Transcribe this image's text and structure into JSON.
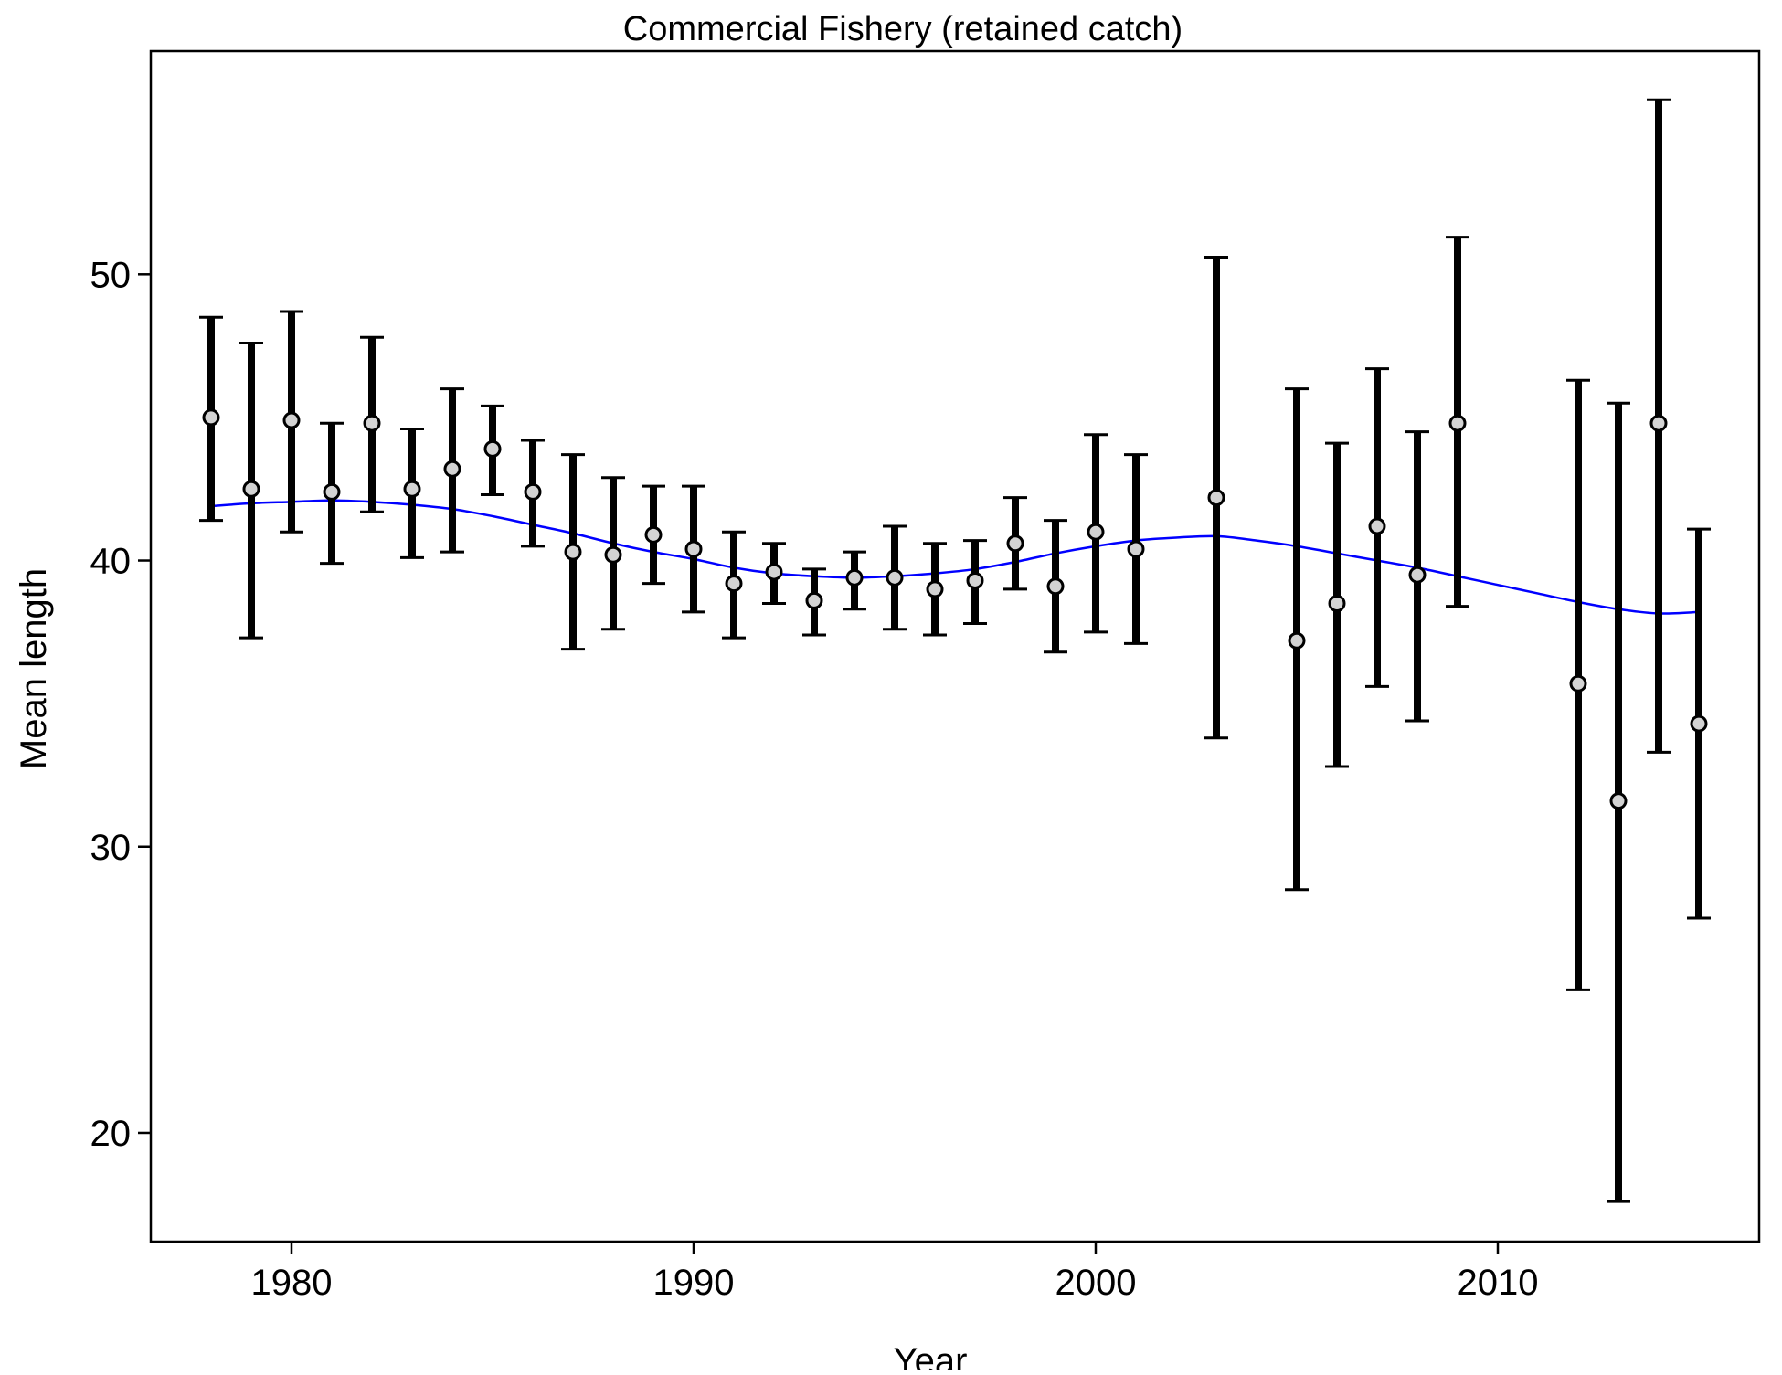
{
  "chart_data": {
    "type": "scatter",
    "title": "Commercial Fishery (retained catch)",
    "xlabel": "Year",
    "ylabel": "Mean length",
    "xlim": [
      1976.5,
      2016.5
    ],
    "ylim": [
      16.2,
      57.8
    ],
    "xticks": [
      1980,
      1990,
      2000,
      2010
    ],
    "yticks": [
      20,
      30,
      40,
      50
    ],
    "grid": false,
    "legend": "none",
    "colors": {
      "points_fill": "#d3d3d3",
      "points_stroke": "#000000",
      "error_bars": "#000000",
      "fit_line": "#0000ff"
    },
    "series": [
      {
        "kind": "points_with_error_bars",
        "x": [
          1978,
          1979,
          1980,
          1981,
          1982,
          1983,
          1984,
          1985,
          1986,
          1987,
          1988,
          1989,
          1990,
          1991,
          1992,
          1993,
          1994,
          1995,
          1996,
          1997,
          1998,
          1999,
          2000,
          2001,
          2003,
          2005,
          2006,
          2007,
          2008,
          2009,
          2012,
          2013,
          2014,
          2015
        ],
        "y": [
          45.0,
          42.5,
          44.9,
          42.4,
          44.8,
          42.5,
          43.2,
          43.9,
          42.4,
          40.3,
          40.2,
          40.9,
          40.4,
          39.2,
          39.6,
          38.6,
          39.4,
          39.4,
          39.0,
          39.3,
          40.6,
          39.1,
          41.0,
          40.4,
          42.2,
          37.2,
          38.5,
          41.2,
          39.5,
          44.8,
          35.7,
          31.6,
          44.8,
          34.3
        ],
        "lower": [
          41.4,
          37.3,
          41.0,
          39.9,
          41.7,
          40.1,
          40.3,
          42.3,
          40.5,
          36.9,
          37.6,
          39.2,
          38.2,
          37.3,
          38.5,
          37.4,
          38.3,
          37.6,
          37.4,
          37.8,
          39.0,
          36.8,
          37.5,
          37.1,
          33.8,
          28.5,
          32.8,
          35.6,
          34.4,
          38.4,
          25.0,
          17.6,
          33.3,
          27.5
        ],
        "upper": [
          48.5,
          47.6,
          48.7,
          44.8,
          47.8,
          44.6,
          46.0,
          45.4,
          44.2,
          43.7,
          42.9,
          42.6,
          42.6,
          41.0,
          40.6,
          39.7,
          40.3,
          41.2,
          40.6,
          40.7,
          42.2,
          41.4,
          44.4,
          43.7,
          50.6,
          46.0,
          44.1,
          46.7,
          44.5,
          51.3,
          46.3,
          45.5,
          56.1,
          41.1
        ]
      },
      {
        "kind": "fitted_line",
        "x": [
          1978,
          1979,
          1980,
          1981,
          1982,
          1983,
          1984,
          1985,
          1986,
          1987,
          1988,
          1989,
          1990,
          1991,
          1992,
          1993,
          1994,
          1995,
          1996,
          1997,
          1998,
          1999,
          2000,
          2001,
          2002,
          2003,
          2004,
          2005,
          2006,
          2007,
          2008,
          2009,
          2010,
          2011,
          2012,
          2013,
          2014,
          2015
        ],
        "y": [
          41.9,
          42.0,
          42.05,
          42.1,
          42.05,
          41.95,
          41.8,
          41.55,
          41.25,
          40.95,
          40.6,
          40.3,
          40.05,
          39.75,
          39.55,
          39.45,
          39.4,
          39.45,
          39.55,
          39.7,
          39.95,
          40.25,
          40.5,
          40.7,
          40.8,
          40.85,
          40.7,
          40.5,
          40.25,
          40.0,
          39.75,
          39.45,
          39.15,
          38.85,
          38.55,
          38.3,
          38.15,
          38.2
        ]
      }
    ]
  }
}
